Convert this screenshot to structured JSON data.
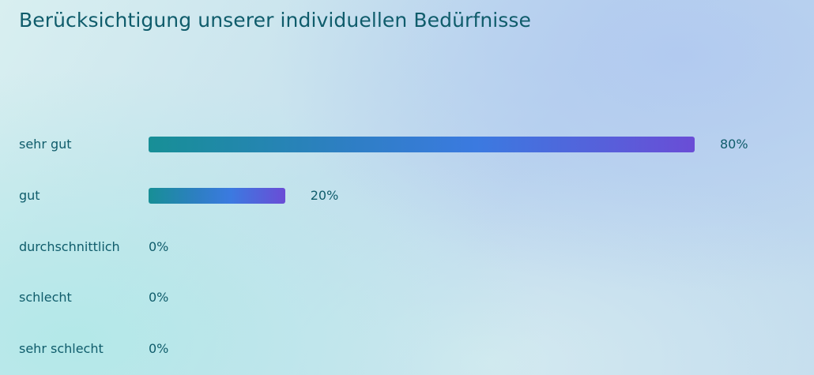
{
  "title": "Berücksichtigung unserer individuellen Bedürfnisse",
  "chart_data": {
    "type": "bar",
    "orientation": "horizontal",
    "title": "Berücksichtigung unserer individuellen Bedürfnisse",
    "categories": [
      "sehr gut",
      "gut",
      "durchschnittlich",
      "schlecht",
      "sehr schlecht"
    ],
    "values": [
      80,
      20,
      0,
      0,
      0
    ],
    "value_labels": [
      "80%",
      "20%",
      "0%",
      "0%",
      "0%"
    ],
    "unit": "%",
    "xlim": [
      0,
      100
    ],
    "bar_gradient": [
      "#178f96",
      "#3b7ae0",
      "#6a4dd6"
    ],
    "text_color": "#0f5c6b",
    "grid": false,
    "legend": "none"
  }
}
